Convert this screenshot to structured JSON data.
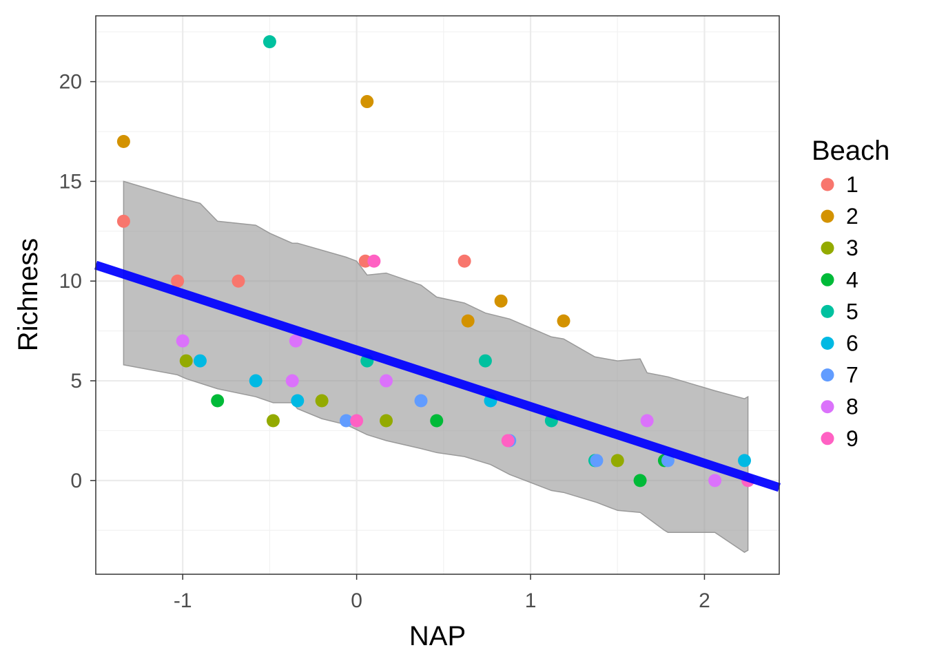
{
  "chart_data": {
    "type": "scatter",
    "xlabel": "NAP",
    "ylabel": "Richness",
    "xlim": [
      -1.5,
      2.43
    ],
    "ylim": [
      -4.7,
      23.3
    ],
    "x_ticks": [
      -1,
      0,
      1,
      2
    ],
    "y_ticks": [
      0,
      5,
      10,
      15,
      20
    ],
    "grid": true,
    "legend": {
      "title": "Beach",
      "position": "right",
      "entries": [
        {
          "label": "1",
          "color": "#F8766D"
        },
        {
          "label": "2",
          "color": "#D39200"
        },
        {
          "label": "3",
          "color": "#93AA00"
        },
        {
          "label": "4",
          "color": "#00BA38"
        },
        {
          "label": "5",
          "color": "#00C19F"
        },
        {
          "label": "6",
          "color": "#00B9E3"
        },
        {
          "label": "7",
          "color": "#619CFF"
        },
        {
          "label": "8",
          "color": "#DB72FB"
        },
        {
          "label": "9",
          "color": "#FF61C3"
        }
      ]
    },
    "points": [
      {
        "beach": "1",
        "x": -1.34,
        "y": 13
      },
      {
        "beach": "1",
        "x": -1.03,
        "y": 10
      },
      {
        "beach": "1",
        "x": -0.68,
        "y": 10
      },
      {
        "beach": "1",
        "x": 0.05,
        "y": 11
      },
      {
        "beach": "1",
        "x": 0.62,
        "y": 11
      },
      {
        "beach": "2",
        "x": -1.34,
        "y": 17
      },
      {
        "beach": "2",
        "x": 0.06,
        "y": 19
      },
      {
        "beach": "2",
        "x": 0.64,
        "y": 8
      },
      {
        "beach": "2",
        "x": 0.83,
        "y": 9
      },
      {
        "beach": "2",
        "x": 1.19,
        "y": 8
      },
      {
        "beach": "3",
        "x": -0.98,
        "y": 6
      },
      {
        "beach": "3",
        "x": -0.48,
        "y": 3
      },
      {
        "beach": "3",
        "x": -0.2,
        "y": 4
      },
      {
        "beach": "3",
        "x": 0.17,
        "y": 3
      },
      {
        "beach": "3",
        "x": 1.5,
        "y": 1
      },
      {
        "beach": "4",
        "x": -0.8,
        "y": 4
      },
      {
        "beach": "4",
        "x": 0.46,
        "y": 3
      },
      {
        "beach": "4",
        "x": 1.63,
        "y": 0
      },
      {
        "beach": "4",
        "x": 1.77,
        "y": 1
      },
      {
        "beach": "5",
        "x": -0.5,
        "y": 22
      },
      {
        "beach": "5",
        "x": 0.06,
        "y": 6
      },
      {
        "beach": "5",
        "x": 0.74,
        "y": 6
      },
      {
        "beach": "5",
        "x": 1.12,
        "y": 3
      },
      {
        "beach": "5",
        "x": 1.37,
        "y": 1
      },
      {
        "beach": "6",
        "x": -0.9,
        "y": 6
      },
      {
        "beach": "6",
        "x": -0.58,
        "y": 5
      },
      {
        "beach": "6",
        "x": -0.34,
        "y": 4
      },
      {
        "beach": "6",
        "x": 0.77,
        "y": 4
      },
      {
        "beach": "6",
        "x": 2.23,
        "y": 1
      },
      {
        "beach": "7",
        "x": -0.06,
        "y": 3
      },
      {
        "beach": "7",
        "x": 0.37,
        "y": 4
      },
      {
        "beach": "7",
        "x": 0.88,
        "y": 2
      },
      {
        "beach": "7",
        "x": 1.38,
        "y": 1
      },
      {
        "beach": "7",
        "x": 1.79,
        "y": 1
      },
      {
        "beach": "8",
        "x": -1.0,
        "y": 7
      },
      {
        "beach": "8",
        "x": -0.37,
        "y": 5
      },
      {
        "beach": "8",
        "x": -0.35,
        "y": 7
      },
      {
        "beach": "8",
        "x": 0.17,
        "y": 5
      },
      {
        "beach": "8",
        "x": 1.67,
        "y": 3
      },
      {
        "beach": "8",
        "x": 2.06,
        "y": 0
      },
      {
        "beach": "9",
        "x": 0.0,
        "y": 3
      },
      {
        "beach": "9",
        "x": 0.1,
        "y": 11
      },
      {
        "beach": "9",
        "x": 0.87,
        "y": 2
      },
      {
        "beach": "9",
        "x": 2.25,
        "y": 0
      }
    ],
    "fit_line": {
      "color": "#0000FF",
      "x": [
        -1.5,
        2.43
      ],
      "y": [
        10.8,
        -0.35
      ]
    },
    "band": {
      "color": "#999999",
      "upper": [
        {
          "x": -1.34,
          "y": 15.0
        },
        {
          "x": -1.03,
          "y": 14.2
        },
        {
          "x": -0.9,
          "y": 13.9
        },
        {
          "x": -0.8,
          "y": 13.0
        },
        {
          "x": -0.58,
          "y": 12.8
        },
        {
          "x": -0.5,
          "y": 12.4
        },
        {
          "x": -0.37,
          "y": 11.9
        },
        {
          "x": -0.34,
          "y": 11.9
        },
        {
          "x": -0.06,
          "y": 11.2
        },
        {
          "x": 0.0,
          "y": 11.0
        },
        {
          "x": 0.06,
          "y": 10.3
        },
        {
          "x": 0.17,
          "y": 10.4
        },
        {
          "x": 0.37,
          "y": 9.8
        },
        {
          "x": 0.46,
          "y": 9.2
        },
        {
          "x": 0.62,
          "y": 8.9
        },
        {
          "x": 0.74,
          "y": 8.4
        },
        {
          "x": 0.88,
          "y": 8.1
        },
        {
          "x": 1.12,
          "y": 7.2
        },
        {
          "x": 1.19,
          "y": 7.1
        },
        {
          "x": 1.37,
          "y": 6.2
        },
        {
          "x": 1.5,
          "y": 6.0
        },
        {
          "x": 1.63,
          "y": 6.1
        },
        {
          "x": 1.67,
          "y": 5.4
        },
        {
          "x": 1.79,
          "y": 5.2
        },
        {
          "x": 2.06,
          "y": 4.5
        },
        {
          "x": 2.23,
          "y": 4.1
        },
        {
          "x": 2.25,
          "y": 4.2
        }
      ],
      "lower": [
        {
          "x": 2.25,
          "y": -3.5
        },
        {
          "x": 2.23,
          "y": -3.6
        },
        {
          "x": 2.06,
          "y": -2.6
        },
        {
          "x": 1.79,
          "y": -2.6
        },
        {
          "x": 1.77,
          "y": -2.5
        },
        {
          "x": 1.63,
          "y": -1.6
        },
        {
          "x": 1.5,
          "y": -1.5
        },
        {
          "x": 1.38,
          "y": -1.1
        },
        {
          "x": 1.19,
          "y": -0.6
        },
        {
          "x": 1.12,
          "y": -0.5
        },
        {
          "x": 0.88,
          "y": 0.3
        },
        {
          "x": 0.77,
          "y": 0.8
        },
        {
          "x": 0.62,
          "y": 1.2
        },
        {
          "x": 0.46,
          "y": 1.4
        },
        {
          "x": 0.37,
          "y": 1.6
        },
        {
          "x": 0.17,
          "y": 2.0
        },
        {
          "x": 0.06,
          "y": 2.3
        },
        {
          "x": -0.06,
          "y": 2.8
        },
        {
          "x": -0.2,
          "y": 3.1
        },
        {
          "x": -0.34,
          "y": 3.6
        },
        {
          "x": -0.37,
          "y": 3.9
        },
        {
          "x": -0.48,
          "y": 3.9
        },
        {
          "x": -0.58,
          "y": 4.2
        },
        {
          "x": -0.8,
          "y": 4.6
        },
        {
          "x": -0.98,
          "y": 5.1
        },
        {
          "x": -1.03,
          "y": 5.3
        },
        {
          "x": -1.34,
          "y": 5.8
        }
      ]
    }
  }
}
